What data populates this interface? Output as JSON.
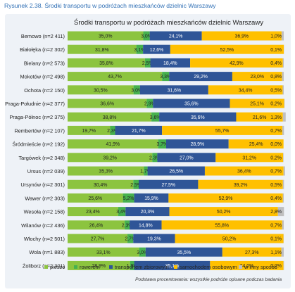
{
  "figure_caption": "Rysunek 2.38. Środki transportu w podróżach mieszkańców dzielnic Warszawy",
  "footnote": "Podstawa procentowania: wszystkie podróże opisane podczas badania",
  "chart_data": {
    "type": "bar",
    "orientation": "horizontal",
    "stacked": true,
    "stacked_100": true,
    "title": "Środki transportu w podróżach mieszkańców dzielnic Warszawy",
    "legend_position": "bottom",
    "xlim": [
      0,
      100
    ],
    "categories": [
      "Bemowo (n=2 411)",
      "Białołęka (n=2 302)",
      "Bielany (n=2 573)",
      "Mokotów (n=2 498)",
      "Ochota (n=2 150)",
      "Praga-Południe (n=2 377)",
      "Praga-Północ (n=2 375)",
      "Rembertów (n=2 107)",
      "Śródmieście (n=2 192)",
      "Targówek (n=2 348)",
      "Ursus (n=2 039)",
      "Ursynów (n=2 301)",
      "Wawer (n=2 303)",
      "Wesoła (n=2 158)",
      "Wilanów (n=2 436)",
      "Włochy (n=2 501)",
      "Wola (n=1 883)",
      "Żoliborz (n=2 301)"
    ],
    "series": [
      {
        "name": "pieszo",
        "color": "#8cc43f",
        "values": [
          35.0,
          31.8,
          35.8,
          43.7,
          30.5,
          36.6,
          38.8,
          19.7,
          41.9,
          39.2,
          35.3,
          30.4,
          25.6,
          23.4,
          26.4,
          27.7,
          33.1,
          28.9
        ]
      },
      {
        "name": "rowerem",
        "color": "#46b14e",
        "values": [
          3.0,
          3.1,
          2.5,
          3.3,
          3.0,
          2.9,
          3.6,
          2.3,
          3.7,
          2.3,
          1.7,
          2.5,
          5.2,
          3.4,
          2.3,
          2.7,
          3.0,
          1.9
        ]
      },
      {
        "name": "transportem zbiorowym",
        "color": "#2f5597",
        "values": [
          24.1,
          12.6,
          18.4,
          29.2,
          31.6,
          35.6,
          35.6,
          21.7,
          28.9,
          27.0,
          26.5,
          27.5,
          15.9,
          20.3,
          14.8,
          19.3,
          35.5,
          35.1
        ]
      },
      {
        "name": "samochodem osobowym",
        "color": "#ffc000",
        "values": [
          36.9,
          52.5,
          42.9,
          23.0,
          34.4,
          25.1,
          21.6,
          55.7,
          25.4,
          31.2,
          36.4,
          39.2,
          52.9,
          50.2,
          55.8,
          50.2,
          27.3,
          34.0
        ]
      },
      {
        "name": "w inny sposób",
        "color": "#bfbfbf",
        "values": [
          1.0,
          0.1,
          0.4,
          0.8,
          0.5,
          0.2,
          1.3,
          0.7,
          0.0,
          0.2,
          0.7,
          0.5,
          0.4,
          2.8,
          0.7,
          0.1,
          1.1,
          0.2
        ]
      }
    ],
    "labels": [
      [
        "35,0%",
        "3,0%",
        "24,1%",
        "36,9%",
        "1,0%"
      ],
      [
        "31,8%",
        "3,1%",
        "12,6%",
        "52,5%",
        "0,1%"
      ],
      [
        "35,8%",
        "2,5%",
        "18,4%",
        "42,9%",
        "0,4%"
      ],
      [
        "43,7%",
        "3,3%",
        "29,2%",
        "23,0%",
        "0,8%"
      ],
      [
        "30,5%",
        "3,0%",
        "31,6%",
        "34,4%",
        "0,5%"
      ],
      [
        "36,6%",
        "2,9%",
        "35,6%",
        "25,1%",
        "0,2%"
      ],
      [
        "38,8%",
        "3,6%",
        "35,6%",
        "21,6%",
        "1,3%"
      ],
      [
        "19,7%",
        "2,3%",
        "21,7%",
        "55,7%",
        "0,7%"
      ],
      [
        "41,9%",
        "3,7%",
        "28,9%",
        "25,4%",
        "0,0%"
      ],
      [
        "39,2%",
        "2,3%",
        "27,0%",
        "31,2%",
        "0,2%"
      ],
      [
        "35,3%",
        "1,7%",
        "26,5%",
        "36,4%",
        "0,7%"
      ],
      [
        "30,4%",
        "2,5%",
        "27,5%",
        "39,2%",
        "0,5%"
      ],
      [
        "25,6%",
        "5,2%",
        "15,9%",
        "52,9%",
        "0,4%"
      ],
      [
        "23,4%",
        "3,4%",
        "20,3%",
        "50,2%",
        "2,8%"
      ],
      [
        "26,4%",
        "2,3%",
        "14,8%",
        "55,8%",
        "0,7%"
      ],
      [
        "27,7%",
        "2,7%",
        "19,3%",
        "50,2%",
        "0,1%"
      ],
      [
        "33,1%",
        "3,0%",
        "35,5%",
        "27,3%",
        "1,1%"
      ],
      [
        "28,9%",
        "1,9%",
        "35,1%",
        "34,0%",
        "0,2%"
      ]
    ]
  }
}
